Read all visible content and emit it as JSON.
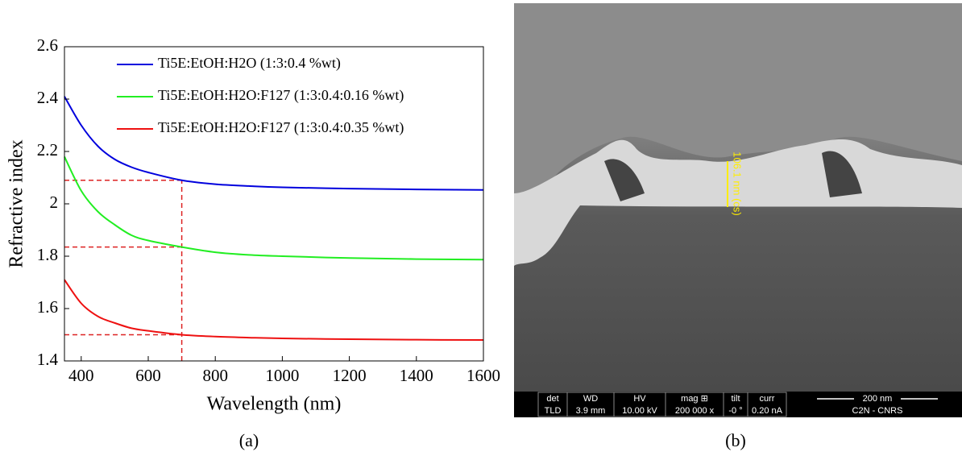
{
  "chart_data": {
    "type": "line",
    "xlabel": "Wavelength (nm)",
    "ylabel": "Refractive index",
    "x": [
      350,
      400,
      450,
      500,
      550,
      600,
      700,
      800,
      900,
      1000,
      1200,
      1400,
      1600
    ],
    "series": [
      {
        "name": "Ti5E:EtOH:H2O (1:3:0.4 %wt)",
        "color": "#0000dd",
        "values": [
          2.41,
          2.3,
          2.22,
          2.17,
          2.14,
          2.12,
          2.09,
          2.075,
          2.068,
          2.063,
          2.058,
          2.055,
          2.053
        ]
      },
      {
        "name": "Ti5E:EtOH:H2O:F127 (1:3:0.4:0.16 %wt)",
        "color": "#22ee22",
        "values": [
          2.18,
          2.05,
          1.97,
          1.92,
          1.88,
          1.86,
          1.835,
          1.815,
          1.805,
          1.8,
          1.793,
          1.789,
          1.787
        ]
      },
      {
        "name": "Ti5E:EtOH:H2O:F127 (1:3:0.4:0.35 %wt)",
        "color": "#ee1111",
        "values": [
          1.71,
          1.62,
          1.57,
          1.545,
          1.525,
          1.515,
          1.5,
          1.493,
          1.489,
          1.486,
          1.483,
          1.481,
          1.48
        ]
      }
    ],
    "reference_x": 700,
    "reference_y": [
      2.09,
      1.835,
      1.5
    ],
    "reference_color": "#dd2222",
    "xlim": [
      350,
      1600
    ],
    "xticks": [
      400,
      600,
      800,
      1000,
      1200,
      1400,
      1600
    ],
    "ylim": [
      1.4,
      2.6
    ],
    "yticks": [
      1.4,
      1.6,
      1.8,
      2,
      2.2,
      2.4,
      2.6
    ]
  },
  "panel_labels": [
    "(a)",
    "(b)"
  ],
  "sem_image": {
    "measurement": "106.1 nm (cs)",
    "info_bar": {
      "headers": [
        "det",
        "WD",
        "HV",
        "mag ⊞",
        "tilt",
        "curr"
      ],
      "values": [
        "TLD",
        "3.9 mm",
        "10.00 kV",
        "200 000 x",
        "-0 °",
        "0.20 nA"
      ],
      "scale_bar": "200 nm",
      "institution": "C2N - CNRS"
    }
  }
}
